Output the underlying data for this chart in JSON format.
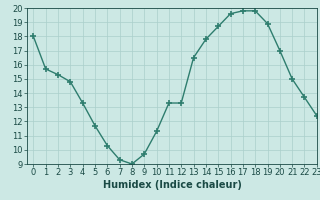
{
  "x": [
    0,
    1,
    2,
    3,
    4,
    5,
    6,
    7,
    8,
    9,
    10,
    11,
    12,
    13,
    14,
    15,
    16,
    17,
    18,
    19,
    20,
    21,
    22,
    23
  ],
  "y": [
    18.0,
    15.7,
    15.3,
    14.8,
    13.3,
    11.7,
    10.3,
    9.3,
    9.0,
    9.7,
    11.3,
    13.3,
    13.3,
    16.5,
    17.8,
    18.7,
    19.6,
    19.8,
    19.8,
    18.9,
    17.0,
    15.0,
    13.7,
    12.4
  ],
  "title": "",
  "xlabel": "Humidex (Indice chaleur)",
  "ylabel": "",
  "ylim": [
    9,
    20
  ],
  "xlim": [
    -0.5,
    23
  ],
  "yticks": [
    9,
    10,
    11,
    12,
    13,
    14,
    15,
    16,
    17,
    18,
    19,
    20
  ],
  "xticks": [
    0,
    1,
    2,
    3,
    4,
    5,
    6,
    7,
    8,
    9,
    10,
    11,
    12,
    13,
    14,
    15,
    16,
    17,
    18,
    19,
    20,
    21,
    22,
    23
  ],
  "line_color": "#2e7d6e",
  "marker": "+",
  "marker_size": 4,
  "marker_lw": 1.2,
  "bg_color": "#cce8e4",
  "grid_color": "#aacfcb",
  "font_color": "#1a4a45",
  "label_fontsize": 7,
  "tick_fontsize": 6
}
